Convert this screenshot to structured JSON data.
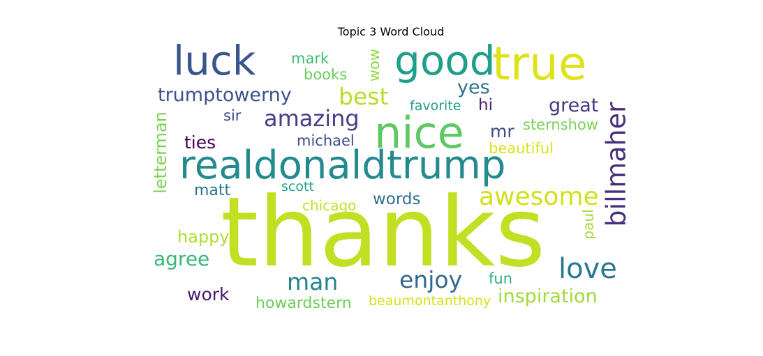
{
  "chart_data": {
    "type": "word_cloud",
    "title": "Topic 3 Word Cloud",
    "words": [
      {
        "text": "thanks",
        "color": "#c2df23"
      },
      {
        "text": "realdonaldtrump",
        "color": "#238a8d"
      },
      {
        "text": "nice",
        "color": "#5ec962"
      },
      {
        "text": "true",
        "color": "#dde318"
      },
      {
        "text": "good",
        "color": "#1f9e89"
      },
      {
        "text": "luck",
        "color": "#39568c"
      },
      {
        "text": "billmaher",
        "color": "#472f7d"
      },
      {
        "text": "awesome",
        "color": "#d0e11c"
      },
      {
        "text": "love",
        "color": "#2a788e"
      },
      {
        "text": "letterman",
        "color": "#7ad151"
      },
      {
        "text": "amazing",
        "color": "#433e85"
      },
      {
        "text": "trumptowerny",
        "color": "#3b528b"
      },
      {
        "text": "best",
        "color": "#b5de2b"
      },
      {
        "text": "enjoy",
        "color": "#31688e"
      },
      {
        "text": "man",
        "color": "#26828e"
      },
      {
        "text": "inspiration",
        "color": "#a0da39"
      },
      {
        "text": "great",
        "color": "#443983"
      },
      {
        "text": "agree",
        "color": "#35b779"
      },
      {
        "text": "yes",
        "color": "#2c728e"
      },
      {
        "text": "mark",
        "color": "#3dbc74"
      },
      {
        "text": "books",
        "color": "#6ccd5a"
      },
      {
        "text": "wow",
        "color": "#8fd744"
      },
      {
        "text": "mr",
        "color": "#3e4989"
      },
      {
        "text": "howardstern",
        "color": "#6ece58"
      },
      {
        "text": "work",
        "color": "#48186a"
      },
      {
        "text": "happy",
        "color": "#b0dd2f"
      },
      {
        "text": "ties",
        "color": "#440154"
      },
      {
        "text": "words",
        "color": "#2d708e"
      },
      {
        "text": "sternshow",
        "color": "#75d054"
      },
      {
        "text": "beautiful",
        "color": "#d8e219"
      },
      {
        "text": "michael",
        "color": "#3e4a89"
      },
      {
        "text": "favorite",
        "color": "#1fa088"
      },
      {
        "text": "hi",
        "color": "#481f70"
      },
      {
        "text": "sir",
        "color": "#404688"
      },
      {
        "text": "matt",
        "color": "#2a778e"
      },
      {
        "text": "scott",
        "color": "#20a386"
      },
      {
        "text": "chicago",
        "color": "#c0df25"
      },
      {
        "text": "paul",
        "color": "#a2da37"
      },
      {
        "text": "fun",
        "color": "#29af7f"
      },
      {
        "text": "beaumontanthony",
        "color": "#d5e21a"
      }
    ]
  }
}
